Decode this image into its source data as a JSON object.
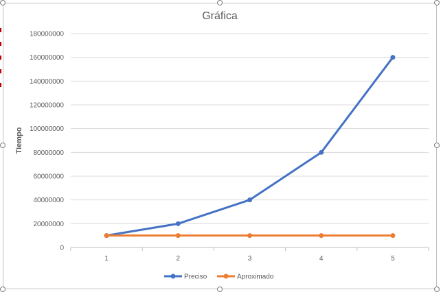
{
  "chart_data": {
    "type": "line",
    "title": "Gráfica",
    "xlabel": "",
    "ylabel": "Tiempo",
    "categories": [
      "1",
      "2",
      "3",
      "4",
      "5"
    ],
    "ylim": [
      0,
      180000000
    ],
    "yticks": [
      "0",
      "20000000",
      "40000000",
      "60000000",
      "80000000",
      "100000000",
      "120000000",
      "140000000",
      "160000000",
      "180000000"
    ],
    "grid": true,
    "legend_position": "bottom",
    "series": [
      {
        "name": "Preciso",
        "color": "#4472C4",
        "values": [
          10000000,
          20000000,
          40000000,
          80000000,
          160000000
        ]
      },
      {
        "name": "Aproximado",
        "color": "#ED7D31",
        "values": [
          10000000,
          10000000,
          10000000,
          10000000,
          10000000
        ]
      }
    ]
  }
}
